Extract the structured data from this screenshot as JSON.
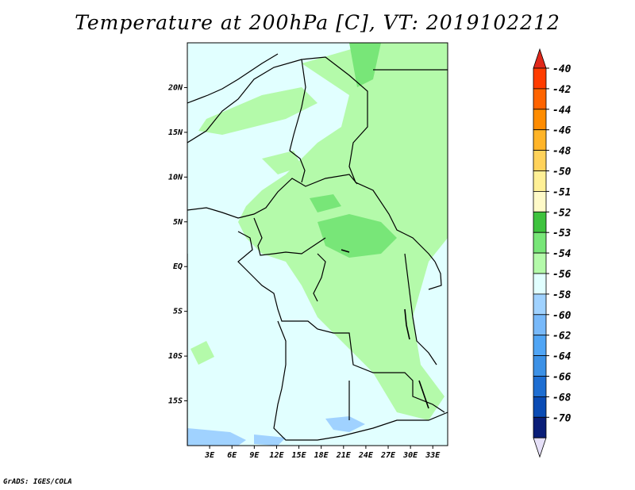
{
  "title": "Temperature at 200hPa [C], VT: 2019102212",
  "credit": "GrADS: IGES/COLA",
  "map": {
    "lon_range": [
      0,
      35
    ],
    "lat_range": [
      -20,
      25
    ],
    "lat_ticks": [
      {
        "value": 20,
        "label": "20N"
      },
      {
        "value": 15,
        "label": "15N"
      },
      {
        "value": 10,
        "label": "10N"
      },
      {
        "value": 5,
        "label": "5N"
      },
      {
        "value": 0,
        "label": "EQ"
      },
      {
        "value": -5,
        "label": "5S"
      },
      {
        "value": -10,
        "label": "10S"
      },
      {
        "value": -15,
        "label": "15S"
      }
    ],
    "lon_ticks": [
      {
        "value": 3,
        "label": "3E"
      },
      {
        "value": 6,
        "label": "6E"
      },
      {
        "value": 9,
        "label": "9E"
      },
      {
        "value": 12,
        "label": "12E"
      },
      {
        "value": 15,
        "label": "15E"
      },
      {
        "value": 18,
        "label": "18E"
      },
      {
        "value": 21,
        "label": "21E"
      },
      {
        "value": 24,
        "label": "24E"
      },
      {
        "value": 27,
        "label": "27E"
      },
      {
        "value": 30,
        "label": "30E"
      },
      {
        "value": 33,
        "label": "33E"
      }
    ]
  },
  "colorbar": {
    "top_arrow_color": "#e0281a",
    "bottom_arrow_color": "#e6e0f8",
    "entries": [
      {
        "label": "-40",
        "color": "#ff3c00"
      },
      {
        "label": "-42",
        "color": "#ff6400"
      },
      {
        "label": "-44",
        "color": "#ff8c00"
      },
      {
        "label": "-46",
        "color": "#ffb428"
      },
      {
        "label": "-48",
        "color": "#ffd25a"
      },
      {
        "label": "-50",
        "color": "#fff096"
      },
      {
        "label": "-51",
        "color": "#fffac8"
      },
      {
        "label": "-52",
        "color": "#3ec33e"
      },
      {
        "label": "-53",
        "color": "#78e678"
      },
      {
        "label": "-54",
        "color": "#b4faaa"
      },
      {
        "label": "-56",
        "color": "#e1ffff"
      },
      {
        "label": "-58",
        "color": "#a0d2ff"
      },
      {
        "label": "-60",
        "color": "#78b9fa"
      },
      {
        "label": "-62",
        "color": "#50a5f5"
      },
      {
        "label": "-64",
        "color": "#3c91e6"
      },
      {
        "label": "-66",
        "color": "#1e6ed2"
      },
      {
        "label": "-68",
        "color": "#0a4bb4"
      },
      {
        "label": "-70",
        "color": "#0a1e78"
      }
    ]
  },
  "fill_colors": {
    "cold_region": "#e1ffff",
    "mid_region": "#b4faaa",
    "warm_region": "#78e678",
    "very_cold_region": "#a0d2ff"
  }
}
